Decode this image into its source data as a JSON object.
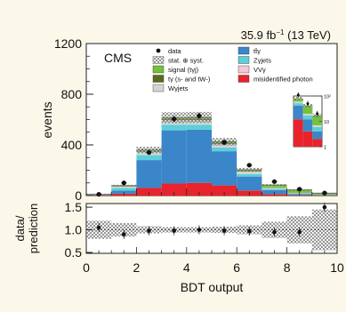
{
  "header": {
    "lumi": "35.9 fb",
    "lumi_exp": "−1",
    "energy": " (13 TeV)"
  },
  "experiment_label": "CMS",
  "legend": [
    {
      "key": "data",
      "label": "data",
      "kind": "marker",
      "color": "#111111"
    },
    {
      "key": "ttg",
      "label": "tt̄γ",
      "kind": "box",
      "color": "#3b86c8"
    },
    {
      "key": "unc",
      "label": "stat. ⊕ syst.",
      "kind": "hatch",
      "color": "#7a7a7a"
    },
    {
      "key": "zg",
      "label": "Zγjets",
      "kind": "box",
      "color": "#5ccfd9"
    },
    {
      "key": "signal",
      "label": "signal (tγj)",
      "kind": "box",
      "color": "#74c13a"
    },
    {
      "key": "vvg",
      "label": "VVγ",
      "kind": "box",
      "color": "#f7c6d6"
    },
    {
      "key": "tg_stw",
      "label": "tγ (s- and tW-)",
      "kind": "box",
      "color": "#5b6b1e"
    },
    {
      "key": "misid",
      "label": "misidentified photon",
      "kind": "box",
      "color": "#e8232c"
    },
    {
      "key": "wg",
      "label": "Wγjets",
      "kind": "box",
      "color": "#d4d4d4"
    }
  ],
  "chart_data": [
    {
      "type": "bar",
      "stacked": true,
      "x_bin_edges": [
        0,
        1,
        2,
        3,
        4,
        5,
        6,
        7,
        8,
        9,
        10
      ],
      "ylabel": "events",
      "xlabel": "",
      "ylim": [
        0,
        1200
      ],
      "y_ticks": [
        0,
        400,
        800,
        1200
      ],
      "x_ticks": [
        0,
        2,
        4,
        6,
        8,
        10
      ],
      "stack_order": [
        "misid",
        "ttg",
        "zg",
        "wg",
        "tg_stw",
        "signal"
      ],
      "series": [
        {
          "key": "misid",
          "name": "misidentified photon",
          "color": "#e8232c",
          "values": [
            3,
            15,
            60,
            95,
            100,
            80,
            40,
            12,
            4,
            2
          ]
        },
        {
          "key": "ttg",
          "name": "tt̄γ",
          "color": "#3b86c8",
          "values": [
            2,
            25,
            220,
            420,
            420,
            270,
            110,
            30,
            8,
            2
          ]
        },
        {
          "key": "zg",
          "name": "Zγjets",
          "color": "#5ccfd9",
          "values": [
            2,
            20,
            40,
            45,
            40,
            30,
            20,
            10,
            5,
            2
          ]
        },
        {
          "key": "vvg",
          "name": "VVγ",
          "color": "#f7c6d6",
          "values": [
            0,
            1,
            2,
            2,
            2,
            2,
            1,
            1,
            0,
            0
          ]
        },
        {
          "key": "wg",
          "name": "Wγjets",
          "color": "#d4d4d4",
          "values": [
            1,
            10,
            25,
            35,
            35,
            25,
            18,
            8,
            3,
            1
          ]
        },
        {
          "key": "tg_stw",
          "name": "tγ (s- and tW-)",
          "color": "#5b6b1e",
          "values": [
            0,
            3,
            5,
            8,
            8,
            6,
            5,
            3,
            2,
            1
          ]
        },
        {
          "key": "signal",
          "name": "signal (tγj)",
          "color": "#74c13a",
          "values": [
            1,
            5,
            8,
            10,
            12,
            12,
            10,
            20,
            22,
            10
          ]
        }
      ],
      "data_points": [
        {
          "x": 0.5,
          "y": 10
        },
        {
          "x": 1.5,
          "y": 100
        },
        {
          "x": 2.5,
          "y": 340
        },
        {
          "x": 3.5,
          "y": 605
        },
        {
          "x": 4.5,
          "y": 630
        },
        {
          "x": 5.5,
          "y": 420
        },
        {
          "x": 6.5,
          "y": 240
        },
        {
          "x": 7.5,
          "y": 110
        },
        {
          "x": 8.5,
          "y": 50
        },
        {
          "x": 9.5,
          "y": 20
        }
      ],
      "uncertainty_fraction": 0.07
    },
    {
      "type": "bar",
      "stacked": true,
      "subtype": "inset",
      "log_scale": true,
      "x_bin_edges": [
        7,
        8,
        9,
        10
      ],
      "ylim": [
        1,
        100
      ],
      "y_tick_labels": [
        "10²",
        "10",
        "1"
      ],
      "stack_order": [
        "misid",
        "ttg",
        "zg",
        "wg",
        "signal"
      ],
      "series": [
        {
          "key": "misid",
          "color": "#e8232c",
          "values": [
            12,
            4,
            2
          ]
        },
        {
          "key": "ttg",
          "color": "#3b86c8",
          "values": [
            30,
            8,
            2
          ]
        },
        {
          "key": "zg",
          "color": "#5ccfd9",
          "values": [
            10,
            5,
            2
          ]
        },
        {
          "key": "wg",
          "color": "#d4d4d4",
          "values": [
            8,
            3,
            1
          ]
        },
        {
          "key": "signal",
          "color": "#74c13a",
          "values": [
            20,
            22,
            10
          ]
        }
      ],
      "data_points": [
        {
          "x": 7.5,
          "y": 110
        },
        {
          "x": 8.5,
          "y": 50
        },
        {
          "x": 9.5,
          "y": 20
        }
      ]
    },
    {
      "type": "scatter",
      "subtype": "ratio",
      "ylabel": "data/\nprediction",
      "xlabel": "BDT output",
      "ylim": [
        0.5,
        1.5
      ],
      "y_ticks": [
        0.5,
        1.0,
        1.5
      ],
      "y_tick_labels": [
        "0.5",
        "1.0",
        "1.5"
      ],
      "xlim": [
        0,
        10
      ],
      "x_ticks": [
        0,
        2,
        4,
        6,
        8,
        10
      ],
      "x": [
        0.5,
        1.5,
        2.5,
        3.5,
        4.5,
        5.5,
        6.5,
        7.5,
        8.5,
        9.5
      ],
      "y": [
        1.05,
        0.9,
        0.98,
        0.98,
        1.0,
        0.98,
        0.97,
        0.95,
        0.95,
        1.5
      ],
      "band_halfwidth": [
        0.2,
        0.15,
        0.08,
        0.06,
        0.06,
        0.07,
        0.1,
        0.18,
        0.3,
        0.45
      ]
    }
  ]
}
